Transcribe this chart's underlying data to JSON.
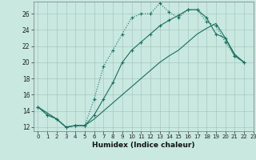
{
  "xlabel": "Humidex (Indice chaleur)",
  "ylabel": "",
  "xlim": [
    -0.5,
    23
  ],
  "ylim": [
    11.5,
    27.5
  ],
  "xticks": [
    0,
    1,
    2,
    3,
    4,
    5,
    6,
    7,
    8,
    9,
    10,
    11,
    12,
    13,
    14,
    15,
    16,
    17,
    18,
    19,
    20,
    21,
    22,
    23
  ],
  "yticks": [
    12,
    14,
    16,
    18,
    20,
    22,
    24,
    26
  ],
  "background_color": "#c8e8e0",
  "line_color": "#1a6e60",
  "grid_color": "#a8c8c0",
  "line1_x": [
    0,
    1,
    2,
    3,
    4,
    5,
    6,
    7,
    8,
    9,
    10,
    11,
    12,
    13,
    14,
    15,
    16,
    17,
    18,
    19,
    20,
    21,
    22
  ],
  "line1_y": [
    14.5,
    13.5,
    13,
    12,
    12.2,
    12.2,
    15.5,
    19.5,
    21.5,
    23.5,
    25.5,
    26.0,
    26.0,
    27.3,
    26.2,
    25.5,
    26.5,
    26.5,
    25.0,
    24.5,
    22.5,
    20.8,
    20.0
  ],
  "line2_x": [
    0,
    1,
    2,
    3,
    4,
    5,
    6,
    7,
    8,
    9,
    10,
    11,
    12,
    13,
    14,
    15,
    16,
    17,
    18,
    19,
    20,
    21,
    22
  ],
  "line2_y": [
    14.5,
    13.5,
    13,
    12,
    12.2,
    12.2,
    13.5,
    15.5,
    17.5,
    20.0,
    21.5,
    22.5,
    23.5,
    24.5,
    25.2,
    25.8,
    26.5,
    26.5,
    25.5,
    23.5,
    23.0,
    20.8,
    20.0
  ],
  "line3_x": [
    0,
    2,
    3,
    4,
    5,
    6,
    7,
    8,
    9,
    10,
    11,
    12,
    13,
    14,
    15,
    16,
    17,
    18,
    19,
    20,
    21,
    22
  ],
  "line3_y": [
    14.5,
    13.0,
    12.0,
    12.2,
    12.2,
    13.0,
    14.0,
    15.0,
    16.0,
    17.0,
    18.0,
    19.0,
    20.0,
    20.8,
    21.5,
    22.5,
    23.5,
    24.2,
    24.8,
    23.0,
    21.0,
    20.0
  ]
}
